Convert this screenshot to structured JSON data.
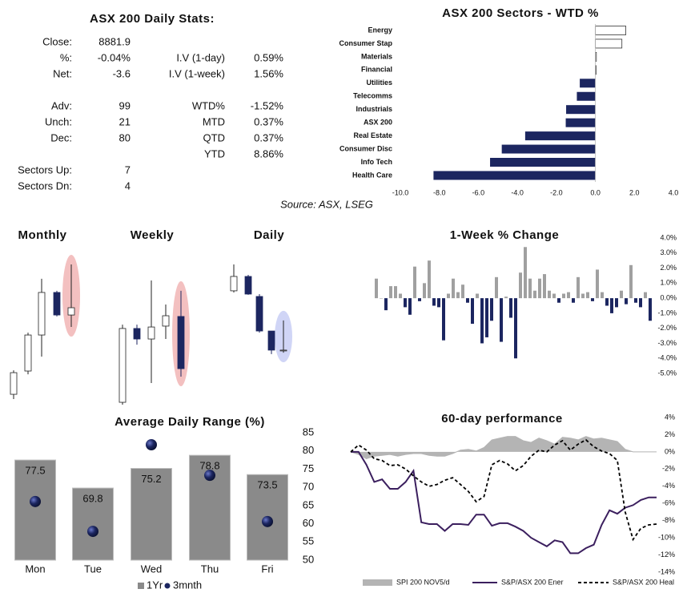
{
  "stats": {
    "title": "ASX 200 Daily Stats:",
    "left": [
      {
        "label": "Close:",
        "value": "8881.9"
      },
      {
        "label": "%:",
        "value": "-0.04%",
        "color": "#c00000"
      },
      {
        "label": "Net:",
        "value": "-3.6",
        "color": "#c00000"
      },
      {
        "label": "Adv:",
        "value": "99"
      },
      {
        "label": "Unch:",
        "value": "21"
      },
      {
        "label": "Dec:",
        "value": "80",
        "color": "#c00000"
      },
      {
        "label": "Sectors Up:",
        "value": "7"
      },
      {
        "label": "Sectors Dn:",
        "value": "4",
        "color": "#c00000"
      }
    ],
    "right": [
      {
        "label": "I.V (1-day)",
        "value": "0.59%"
      },
      {
        "label": "I.V (1-week)",
        "value": "1.56%"
      },
      {
        "label": "WTD%",
        "value": "-1.52%",
        "color": "#c00000"
      },
      {
        "label": "MTD",
        "value": "0.37%"
      },
      {
        "label": "QTD",
        "value": "0.37%"
      },
      {
        "label": "YTD",
        "value": "8.86%"
      }
    ]
  },
  "chart_data": [
    {
      "type": "hbar",
      "title": "ASX 200 Sectors - WTD %",
      "categories": [
        "Energy",
        "Consumer Stap",
        "Materials",
        "Financial",
        "Utilities",
        "Telecomms",
        "Industrials",
        "ASX 200",
        "Real Estate",
        "Consumer Disc",
        "Info Tech",
        "Health Care"
      ],
      "values": [
        1.56,
        1.36,
        0.05,
        0.02,
        -0.8,
        -0.95,
        -1.5,
        -1.52,
        -3.6,
        -4.8,
        -5.4,
        -8.3
      ],
      "color_positive": "#ffffff",
      "color_negative": "#1c2660",
      "xlim": [
        -10,
        4
      ],
      "xticks": [
        {
          "value": -10,
          "label": "-10.0"
        },
        {
          "value": -8,
          "label": "-8.0"
        },
        {
          "value": -6,
          "label": "-6.0"
        },
        {
          "value": -4,
          "label": "-4.0"
        },
        {
          "value": -2,
          "label": "-2.0"
        },
        {
          "value": 0,
          "label": "0.0"
        },
        {
          "value": 2,
          "label": "2.0"
        },
        {
          "value": 4,
          "label": "4.0"
        }
      ],
      "source": "Source: ASX, LSEG"
    },
    {
      "type": "candlestick",
      "title": "Monthly",
      "open": [
        7.0,
        22.7,
        47.0,
        75.7,
        60.5
      ],
      "high": [
        23.2,
        48.6,
        84.9,
        76.8,
        94.6
      ],
      "low": [
        3.8,
        20.5,
        32.4,
        59.5,
        52.4
      ],
      "close": [
        21.6,
        47.0,
        75.7,
        60.5,
        65.4
      ],
      "ylim": [
        0,
        100
      ],
      "color_up": "#ffffff",
      "color_down": "#1c2660",
      "highlight_color": "#f0b0b0"
    },
    {
      "type": "candlestick",
      "title": "Weekly",
      "open": [
        1.6,
        51.4,
        44.3,
        53.0,
        59.5
      ],
      "high": [
        54.0,
        54.0,
        83.8,
        67.6,
        76.8
      ],
      "low": [
        0,
        40.5,
        14.6,
        44.3,
        18.9
      ],
      "close": [
        51.4,
        44.3,
        52.4,
        60.0,
        24.3
      ],
      "ylim": [
        0,
        100
      ],
      "color_up": "#ffffff",
      "color_down": "#1c2660",
      "highlight_color": "#f0b0b0"
    },
    {
      "type": "candlestick",
      "title": "Daily",
      "open": [
        76.8,
        86.5,
        73.0,
        49.7,
        36.8
      ],
      "high": [
        94.6,
        87.6,
        74.6,
        49.7,
        56.8
      ],
      "low": [
        75.7,
        74.1,
        48.6,
        34.1,
        35.1
      ],
      "close": [
        86.5,
        74.6,
        49.7,
        36.8,
        36.8
      ],
      "ylim": [
        0,
        100
      ],
      "color_up": "#ffffff",
      "color_down": "#1c2660",
      "highlight_color": "#c4cbf4"
    },
    {
      "type": "signbar",
      "title": "1-Week % Change",
      "values": [
        1.3,
        0.0,
        -0.8,
        0.8,
        0.8,
        0.3,
        -0.6,
        -1.1,
        2.1,
        -0.2,
        1.0,
        2.5,
        -0.5,
        -0.6,
        -2.8,
        0.3,
        1.3,
        0.4,
        0.9,
        -0.3,
        -1.7,
        0.3,
        -3.0,
        -2.6,
        -1.5,
        1.4,
        -2.9,
        0.1,
        -1.3,
        -4.0,
        1.7,
        3.4,
        1.3,
        0.5,
        1.3,
        1.6,
        0.5,
        0.3,
        -0.3,
        0.3,
        0.4,
        -0.3,
        1.4,
        0.3,
        0.4,
        -0.2,
        1.9,
        0.4,
        -0.5,
        -1.0,
        -0.6,
        0.5,
        -0.4,
        2.2,
        -0.3,
        -0.6,
        0.4,
        -1.5
      ],
      "color_positive": "#a0a0a0",
      "color_negative": "#1c2660",
      "ylim": [
        -5,
        4
      ],
      "yticks": [
        {
          "value": 4,
          "label": "4.0%"
        },
        {
          "value": 3,
          "label": "3.0%"
        },
        {
          "value": 2,
          "label": "2.0%"
        },
        {
          "value": 1,
          "label": "1.0%"
        },
        {
          "value": 0,
          "label": "0.0%"
        },
        {
          "value": -1,
          "label": "-1.0%"
        },
        {
          "value": -2,
          "label": "-2.0%"
        },
        {
          "value": -3,
          "label": "-3.0%"
        },
        {
          "value": -4,
          "label": "-4.0%"
        },
        {
          "value": -5,
          "label": "-5.0%"
        }
      ]
    },
    {
      "type": "combo",
      "title": "Average Daily Range (%)",
      "categories": [
        "Mon",
        "Tue",
        "Wed",
        "Thu",
        "Fri"
      ],
      "series": [
        {
          "name": "1Yr",
          "kind": "bar",
          "color": "#8a8a8a",
          "values": [
            77.5,
            69.8,
            75.2,
            78.8,
            73.5
          ]
        },
        {
          "name": "3mnth",
          "kind": "dot",
          "color": "#1c2660",
          "values": [
            66.1,
            57.9,
            81.7,
            73.3,
            60.6
          ]
        }
      ],
      "ylim": [
        50,
        85
      ],
      "yticks": [
        50,
        55,
        60,
        65,
        70,
        75,
        80,
        85
      ]
    },
    {
      "type": "line",
      "title": "60-day performance",
      "series": [
        {
          "name": "SPI 200 NOV5/d",
          "kind": "area",
          "color": "#b4b4b4",
          "values": [
            0,
            -0.3,
            -0.8,
            -0.5,
            -0.4,
            -0.3,
            -0.5,
            -0.3,
            -0.2,
            -0.2,
            -0.4,
            -0.5,
            -0.5,
            -0.2,
            0.2,
            0.3,
            0.1,
            0.5,
            1.4,
            1.6,
            1.8,
            1.8,
            1.3,
            1.1,
            1.6,
            1.3,
            0.9,
            1.7,
            1.6,
            1.4,
            1.8,
            1.5,
            1.6,
            1.4,
            1.2,
            0.3,
            0.0,
            0,
            0,
            0
          ]
        },
        {
          "name": "S&P/ASX 200 Ener",
          "kind": "line",
          "color": "#3b1f5e",
          "values": [
            0,
            0,
            -1.5,
            -3.5,
            -3.2,
            -4.3,
            -4.3,
            -3.5,
            -2.2,
            -8.2,
            -8.4,
            -8.4,
            -9.2,
            -8.4,
            -8.4,
            -8.5,
            -7.3,
            -7.3,
            -8.6,
            -8.3,
            -8.3,
            -8.7,
            -9.2,
            -10.0,
            -10.5,
            -11.0,
            -10.3,
            -10.5,
            -11.8,
            -11.8,
            -11.2,
            -10.8,
            -8.5,
            -6.8,
            -7.2,
            -6.5,
            -6.2,
            -5.6,
            -5.3,
            -5.3
          ]
        },
        {
          "name": "S&P/ASX 200 Heal",
          "kind": "dashed",
          "color": "#000000",
          "values": [
            0,
            0.8,
            0.2,
            -0.8,
            -1.0,
            -1.6,
            -1.5,
            -2.0,
            -2.8,
            -3.5,
            -4.0,
            -3.8,
            -3.3,
            -3.0,
            -3.8,
            -4.6,
            -5.8,
            -5.2,
            -1.5,
            -1.0,
            -1.4,
            -2.2,
            -1.6,
            -0.5,
            0.2,
            0.0,
            0.8,
            1.3,
            0.2,
            0.9,
            1.4,
            0.6,
            0.1,
            -0.2,
            -1.0,
            -7.0,
            -10.2,
            -8.9,
            -8.5,
            -8.4
          ]
        }
      ],
      "ylim": [
        -14,
        4
      ],
      "yticks": [
        {
          "value": 4,
          "label": "4%"
        },
        {
          "value": 2,
          "label": "2%"
        },
        {
          "value": 0,
          "label": "0%"
        },
        {
          "value": -2,
          "label": "-2%"
        },
        {
          "value": -4,
          "label": "-4%"
        },
        {
          "value": -6,
          "label": "-6%"
        },
        {
          "value": -8,
          "label": "-8%"
        },
        {
          "value": -10,
          "label": "-10%"
        },
        {
          "value": -12,
          "label": "-12%"
        },
        {
          "value": -14,
          "label": "-14%"
        }
      ]
    }
  ]
}
